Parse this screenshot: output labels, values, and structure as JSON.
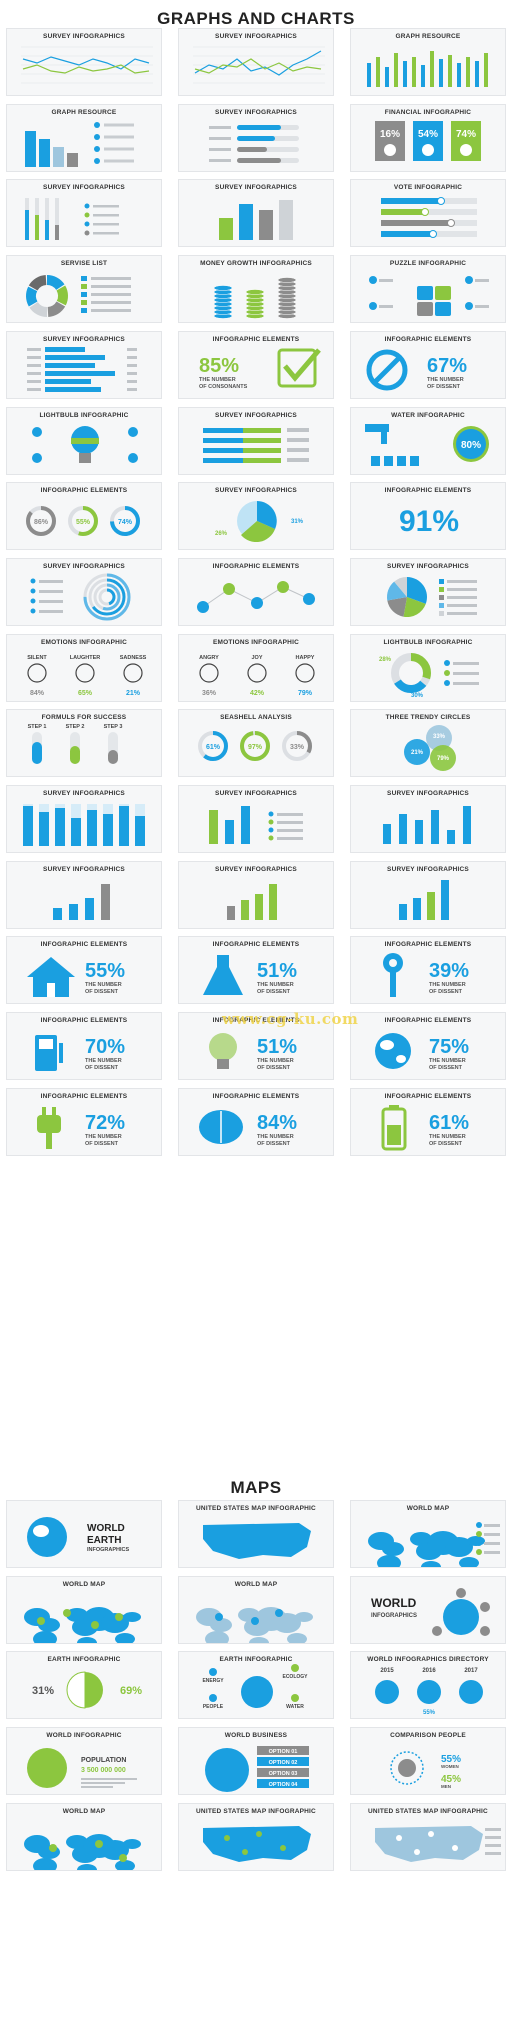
{
  "sections": {
    "graphs_title": "GRAPHS AND CHARTS",
    "maps_title": "MAPS"
  },
  "colors": {
    "blue": "#1a9fe0",
    "green": "#8cc63f",
    "gray": "#8c8c8c",
    "light_blue": "#bfe3f5",
    "card_bg": "#f6f7f8"
  },
  "graphs_cards": [
    {
      "title": "SURVEY INFOGRAPHICS",
      "kind": "line"
    },
    {
      "title": "SURVEY INFOGRAPHICS",
      "kind": "line2"
    },
    {
      "title": "GRAPH RESOURCE",
      "kind": "bars_multi"
    },
    {
      "title": "GRAPH RESOURCE",
      "kind": "bars_icons"
    },
    {
      "title": "SURVEY INFOGRAPHICS",
      "kind": "hbars"
    },
    {
      "title": "FINANCIAL INFOGRAPHIC",
      "kind": "finance",
      "values": [
        "16%",
        "54%",
        "74%"
      ]
    },
    {
      "title": "SURVEY INFOGRAPHICS",
      "kind": "sliders"
    },
    {
      "title": "SURVEY INFOGRAPHICS",
      "kind": "bars3d"
    },
    {
      "title": "VOTE INFOGRAPHIC",
      "kind": "vote"
    },
    {
      "title": "SERVISE LIST",
      "kind": "donut"
    },
    {
      "title": "MONEY GROWTH INFOGRAPHICS",
      "kind": "coins"
    },
    {
      "title": "PUZZLE INFOGRAPHIC",
      "kind": "puzzle"
    },
    {
      "title": "SURVEY INFOGRAPHICS",
      "kind": "hbars_blue"
    },
    {
      "title": "INFOGRAPHIC ELEMENTS",
      "kind": "check",
      "value": "85%",
      "sub": "THE NUMBER OF CONSONANTS"
    },
    {
      "title": "INFOGRAPHIC ELEMENTS",
      "kind": "nosign",
      "value": "67%",
      "sub": "THE NUMBER OF DISSENT"
    },
    {
      "title": "LIGHTBULB INFOGRAPHIC",
      "kind": "bulb"
    },
    {
      "title": "SURVEY INFOGRAPHICS",
      "kind": "stacked"
    },
    {
      "title": "WATER INFOGRAPHIC",
      "kind": "water",
      "value": "80%"
    },
    {
      "title": "INFOGRAPHIC ELEMENTS",
      "kind": "rings3",
      "values": [
        "86%",
        "55%",
        "74%"
      ]
    },
    {
      "title": "SURVEY INFOGRAPHICS",
      "kind": "pie3",
      "values": [
        "31%",
        "26%"
      ]
    },
    {
      "title": "INFOGRAPHIC ELEMENTS",
      "kind": "bigpct",
      "value": "91%"
    },
    {
      "title": "SURVEY INFOGRAPHICS",
      "kind": "arcs"
    },
    {
      "title": "INFOGRAPHIC ELEMENTS",
      "kind": "nodes"
    },
    {
      "title": "SURVEY INFOGRAPHICS",
      "kind": "pie5"
    },
    {
      "title": "EMOTIONS INFOGRAPHIC",
      "kind": "emotions",
      "labels": [
        "SILENT",
        "LAUGHTER",
        "SADNESS"
      ],
      "values": [
        "84%",
        "65%",
        "21%"
      ]
    },
    {
      "title": "EMOTIONS INFOGRAPHIC",
      "kind": "emotions",
      "labels": [
        "ANGRY",
        "JOY",
        "HAPPY"
      ],
      "values": [
        "36%",
        "42%",
        "79%"
      ]
    },
    {
      "title": "LIGHTBULB INFOGRAPHIC",
      "kind": "donut2",
      "values": [
        "28%",
        "30%"
      ]
    },
    {
      "title": "FORMULS FOR SUCCESS",
      "kind": "tubes",
      "labels": [
        "STEP 1",
        "STEP 2",
        "STEP 3"
      ]
    },
    {
      "title": "SEASHELL ANALYSIS",
      "kind": "rings3b",
      "values": [
        "61%",
        "97%",
        "33%"
      ]
    },
    {
      "title": "THREE TRENDY CIRCLES",
      "kind": "venn",
      "values": [
        "33%",
        "21%",
        "79%"
      ]
    },
    {
      "title": "SURVEY INFOGRAPHICS",
      "kind": "bars_pale"
    },
    {
      "title": "SURVEY INFOGRAPHICS",
      "kind": "bars_legend"
    },
    {
      "title": "SURVEY INFOGRAPHICS",
      "kind": "bars_small"
    },
    {
      "title": "SURVEY INFOGRAPHICS",
      "kind": "bars_rise1"
    },
    {
      "title": "SURVEY INFOGRAPHICS",
      "kind": "bars_rise2"
    },
    {
      "title": "SURVEY INFOGRAPHICS",
      "kind": "bars_rise3"
    },
    {
      "title": "INFOGRAPHIC ELEMENTS",
      "kind": "house",
      "value": "55%",
      "sub": "THE NUMBER OF DISSENT"
    },
    {
      "title": "INFOGRAPHIC ELEMENTS",
      "kind": "flask",
      "value": "51%",
      "sub": "THE NUMBER OF DISSENT"
    },
    {
      "title": "INFOGRAPHIC ELEMENTS",
      "kind": "key",
      "value": "39%",
      "sub": "THE NUMBER OF DISSENT"
    },
    {
      "title": "INFOGRAPHIC ELEMENTS",
      "kind": "pump",
      "value": "70%",
      "sub": "THE NUMBER OF DISSENT"
    },
    {
      "title": "INFOGRAPHIC ELEMENTS",
      "kind": "lamp",
      "value": "51%",
      "sub": "THE NUMBER OF DISSENT"
    },
    {
      "title": "INFOGRAPHIC ELEMENTS",
      "kind": "globe",
      "value": "75%",
      "sub": "THE NUMBER OF DISSENT"
    },
    {
      "title": "INFOGRAPHIC ELEMENTS",
      "kind": "plug",
      "value": "72%",
      "sub": "THE NUMBER OF DISSENT"
    },
    {
      "title": "INFOGRAPHIC ELEMENTS",
      "kind": "brain",
      "value": "84%",
      "sub": "THE NUMBER OF DISSENT"
    },
    {
      "title": "INFOGRAPHIC ELEMENTS",
      "kind": "battery",
      "value": "61%",
      "sub": "THE NUMBER OF DISSENT"
    }
  ],
  "maps_cards": [
    {
      "title": "",
      "kind": "earth_title",
      "text": [
        "WORLD",
        "EARTH",
        "INFOGRAPHICS"
      ]
    },
    {
      "title": "UNITED STATES MAP INFOGRAPHIC",
      "kind": "usmap"
    },
    {
      "title": "WORLD MAP",
      "kind": "worldmap_legend"
    },
    {
      "title": "WORLD MAP",
      "kind": "worldmap_people"
    },
    {
      "title": "WORLD MAP",
      "kind": "worldmap_pins"
    },
    {
      "title": "",
      "kind": "world_info",
      "text": [
        "WORLD",
        "INFOGRAPHICS"
      ]
    },
    {
      "title": "EARTH INFOGRAPHIC",
      "kind": "earth_pct",
      "values": [
        "31%",
        "69%"
      ]
    },
    {
      "title": "EARTH INFOGRAPHIC",
      "kind": "earth_labels",
      "labels": [
        "ENERGY",
        "ECOLOGY",
        "PEOPLE",
        "WATER"
      ]
    },
    {
      "title": "WORLD INFOGRAPHICS DIRECTORY",
      "kind": "globes3",
      "labels": [
        "2015",
        "2016",
        "2017"
      ],
      "values": [
        "55%"
      ]
    },
    {
      "title": "WORLD INFOGRAPHIC",
      "kind": "population",
      "label": "POPULATION",
      "value": "3 500 000 000"
    },
    {
      "title": "WORLD BUSINESS",
      "kind": "business",
      "options": [
        "OPTION 01",
        "OPTION 02",
        "OPTION 03",
        "OPTION 04"
      ]
    },
    {
      "title": "COMPARISON PEOPLE",
      "kind": "comparison",
      "values": [
        "55%",
        "45%"
      ],
      "labels": [
        "WOMEN",
        "MEN"
      ]
    },
    {
      "title": "WORLD MAP",
      "kind": "worldmap_blue"
    },
    {
      "title": "UNITED STATES MAP INFOGRAPHIC",
      "kind": "usmap_pins"
    },
    {
      "title": "UNITED STATES MAP INFOGRAPHIC",
      "kind": "usmap_light"
    }
  ],
  "watermark": "www.cg-ku.com"
}
